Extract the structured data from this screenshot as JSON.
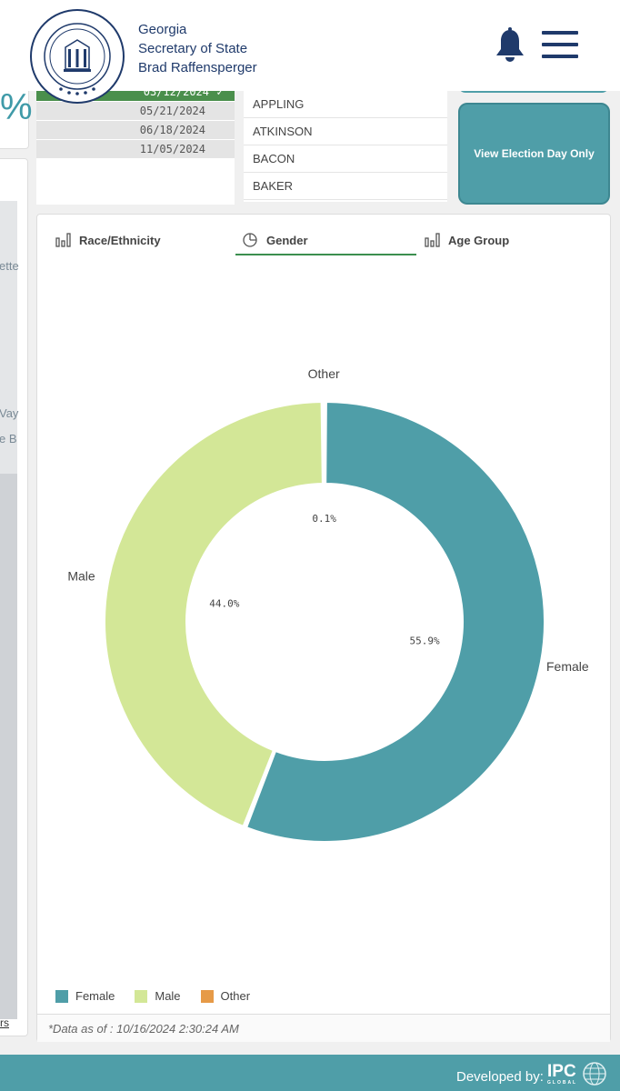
{
  "header": {
    "org_line1": "Georgia",
    "org_line2": "Secretary of State",
    "org_line3": "Brad Raffensperger",
    "seal_text": "SECRETARY OF STATE BRAD RAFFENSPERGER · STATE OF GEORGIA · 1776"
  },
  "left": {
    "pct_fragment": "%",
    "map_labels": [
      "ette",
      "Vay",
      "e B"
    ],
    "map_link": "rs"
  },
  "dates": [
    {
      "label": "03/12/2024",
      "selected": true
    },
    {
      "label": "05/21/2024",
      "selected": false
    },
    {
      "label": "06/18/2024",
      "selected": false
    },
    {
      "label": "11/05/2024",
      "selected": false
    }
  ],
  "date_check": "✓",
  "counties": [
    "APPLING",
    "ATKINSON",
    "BACON",
    "BAKER"
  ],
  "eday_button": "View Election Day Only",
  "tabs": [
    {
      "label": "Race/Ethnicity",
      "icon": "bar-chart-icon"
    },
    {
      "label": "Gender",
      "icon": "pie-chart-icon",
      "active": true
    },
    {
      "label": "Age Group",
      "icon": "bar-chart-icon"
    }
  ],
  "chart_data": {
    "type": "pie",
    "variant": "donut",
    "categories": [
      "Female",
      "Male",
      "Other"
    ],
    "values": [
      55.9,
      44.0,
      0.1
    ],
    "value_labels": [
      "55.9%",
      "44.0%",
      "0.1%"
    ],
    "colors": [
      "#4f9ea8",
      "#d3e797",
      "#e69a47"
    ],
    "legend_position": "bottom-left"
  },
  "footer_note": "*Data as of : 10/16/2024 2:30:24 AM",
  "bottom": {
    "developed_by": "Developed by:",
    "logo_text": "IPC",
    "logo_sub": "GLOBAL"
  }
}
